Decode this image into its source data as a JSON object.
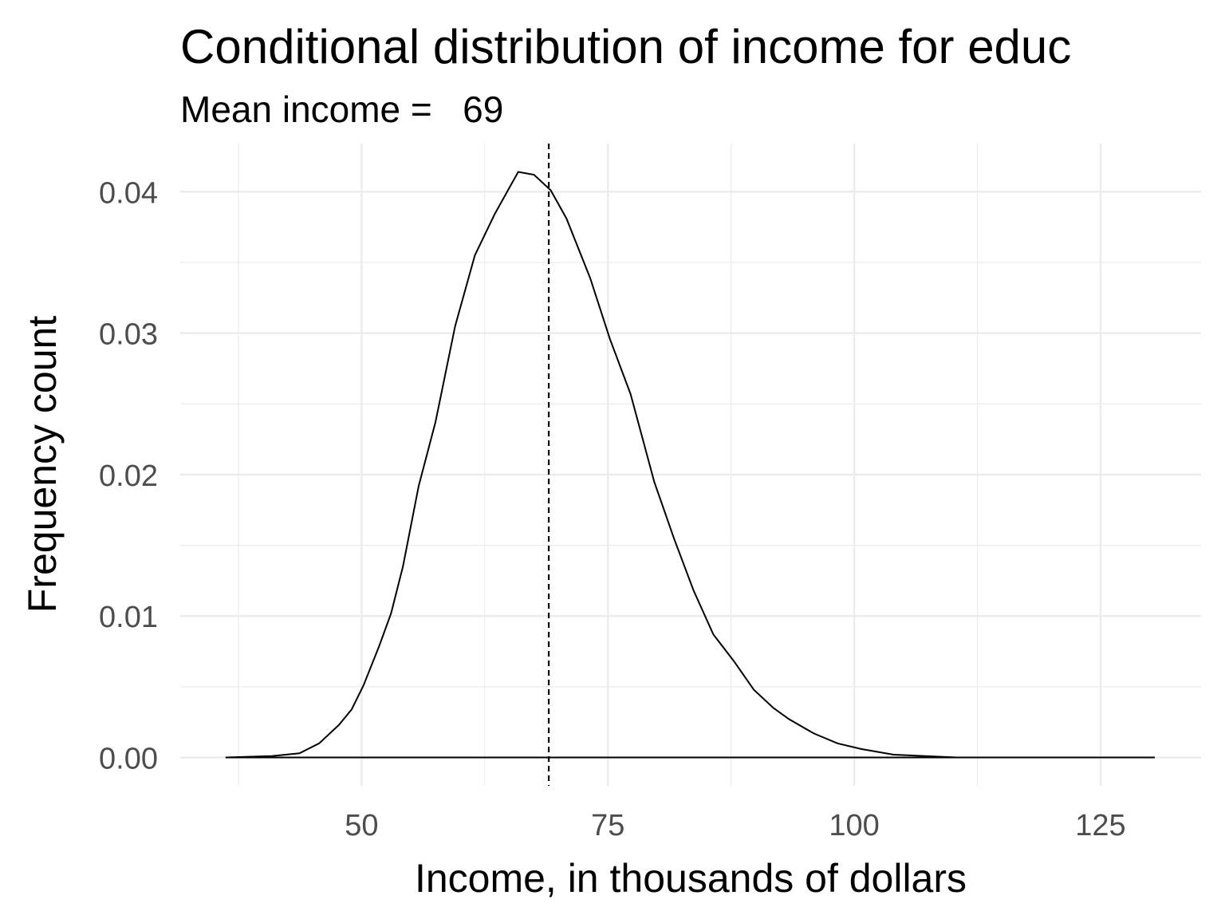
{
  "chart_data": {
    "type": "density",
    "title": "Conditional distribution of income for educ",
    "subtitle": "Mean income =   69",
    "x_label": "Income, in thousands of dollars",
    "y_label": "Frequency count",
    "x": [
      36.2,
      40.9,
      43.7,
      45.7,
      47.7,
      49.0,
      50.2,
      51.8,
      53.0,
      54.2,
      55.8,
      57.5,
      59.5,
      61.5,
      63.5,
      65.9,
      67.5,
      69.2,
      70.8,
      73.2,
      75.2,
      77.3,
      79.7,
      81.7,
      83.7,
      85.7,
      87.8,
      89.8,
      91.8,
      93.4,
      95.9,
      98.3,
      100.7,
      104.0,
      107.2,
      110.4,
      118.5,
      130.5
    ],
    "values": [
      0,
      0.0001,
      0.0003,
      0.001,
      0.0023,
      0.0034,
      0.0051,
      0.0079,
      0.0102,
      0.0135,
      0.0192,
      0.0237,
      0.0305,
      0.0355,
      0.0384,
      0.0414,
      0.0412,
      0.0401,
      0.0381,
      0.0339,
      0.0296,
      0.0257,
      0.0195,
      0.0155,
      0.0118,
      0.0087,
      0.0068,
      0.0048,
      0.0035,
      0.0027,
      0.0017,
      0.001,
      0.0006,
      0.0002,
      0.0001,
      0,
      0,
      0
    ],
    "color": "#000000",
    "vline": 69,
    "vline_color": "#000000",
    "xlim": [
      31.6,
      135.2
    ],
    "ylim": [
      -0.002,
      0.0434
    ],
    "xticks": [
      50,
      75,
      100,
      125
    ],
    "xminor": [
      37.5,
      62.5,
      87.5,
      112.5
    ],
    "yticks": [
      {
        "value": 0,
        "label": "0.00"
      },
      0.01,
      0.02,
      0.03,
      0.04
    ],
    "yminor": [
      0.005,
      0.015,
      0.025,
      0.035
    ],
    "grid": true
  }
}
